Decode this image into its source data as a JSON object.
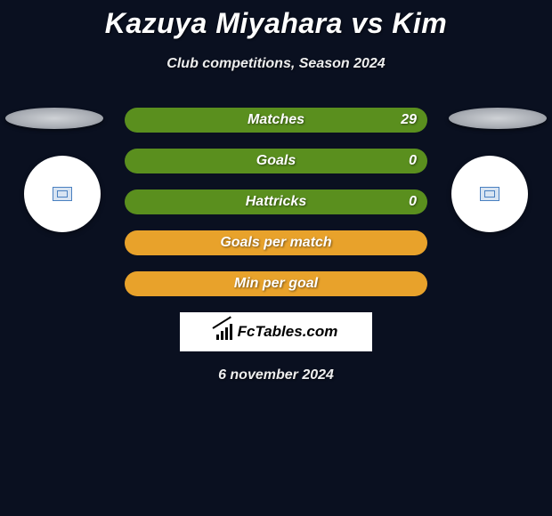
{
  "title": "Kazuya Miyahara vs Kim",
  "subtitle": "Club competitions, Season 2024",
  "date": "6 november 2024",
  "brand": "FcTables.com",
  "colors": {
    "background": "#0a1020",
    "stat_green": "#5a8f1e",
    "stat_orange": "#e8a22b",
    "flag_outline": "#4a80c0",
    "flag_fill": "#d8e4f2",
    "brand_bg": "#ffffff"
  },
  "stats": [
    {
      "label": "Matches",
      "value_right": "29",
      "color": "green"
    },
    {
      "label": "Goals",
      "value_right": "0",
      "color": "green"
    },
    {
      "label": "Hattricks",
      "value_right": "0",
      "color": "green"
    },
    {
      "label": "Goals per match",
      "value_right": "",
      "color": "orange"
    },
    {
      "label": "Min per goal",
      "value_right": "",
      "color": "orange"
    }
  ]
}
